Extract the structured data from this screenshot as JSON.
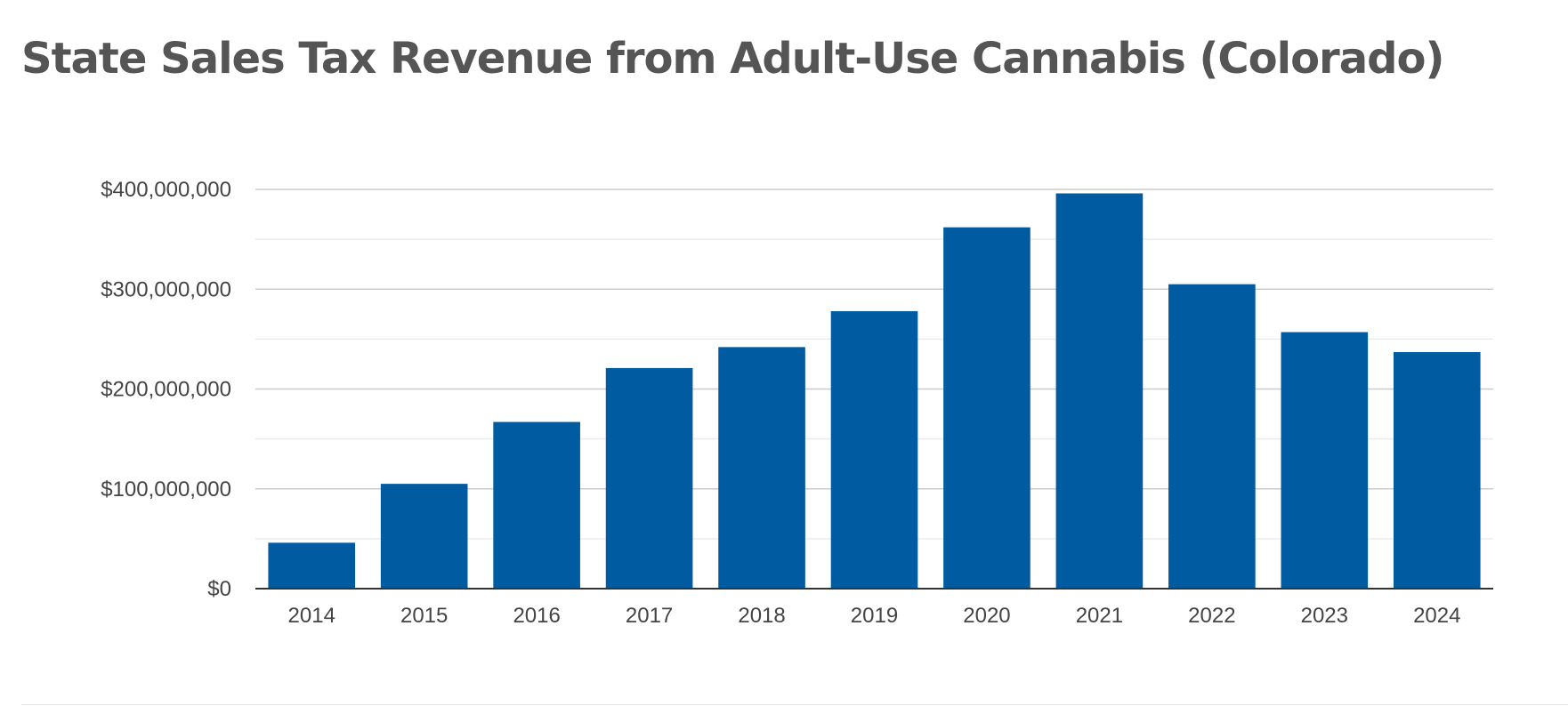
{
  "chart_data": {
    "type": "bar",
    "title": "State Sales Tax Revenue from Adult-Use Cannabis (Colorado)",
    "xlabel": "",
    "ylabel": "",
    "categories": [
      "2014",
      "2015",
      "2016",
      "2017",
      "2018",
      "2019",
      "2020",
      "2021",
      "2022",
      "2023",
      "2024"
    ],
    "values": [
      46000000,
      105000000,
      167000000,
      221000000,
      242000000,
      278000000,
      362000000,
      396000000,
      305000000,
      257000000,
      237000000
    ],
    "ylim": [
      0,
      400000000
    ],
    "yticks": [
      0,
      100000000,
      200000000,
      300000000,
      400000000
    ],
    "ytick_labels": [
      "$0",
      "$100,000,000",
      "$200,000,000",
      "$300,000,000",
      "$400,000,000"
    ],
    "grid": true,
    "legend": "none",
    "colors": {
      "bar": "#005ba1",
      "major_grid": "#cccccc",
      "minor_grid": "#ececec",
      "axis": "#333333"
    }
  }
}
